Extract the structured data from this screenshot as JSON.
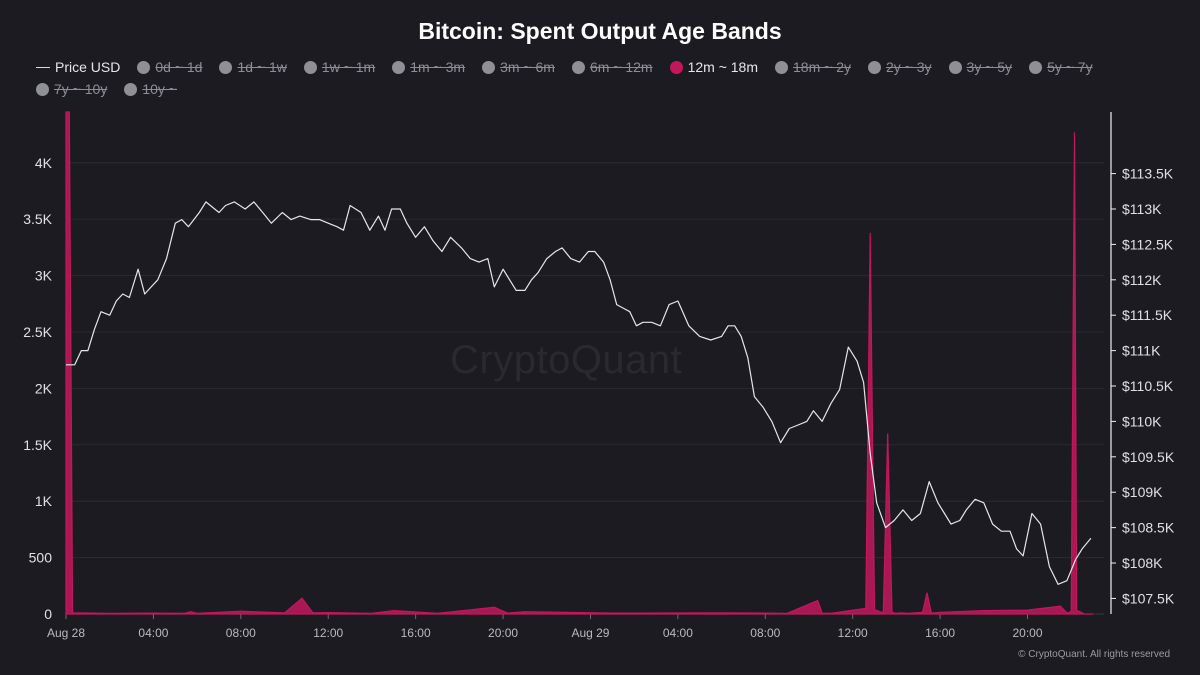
{
  "title": "Bitcoin: Spent Output Age Bands",
  "watermark": "CryptoQuant",
  "copyright": "© CryptoQuant. All rights reserved",
  "legend": [
    {
      "label": "Price USD",
      "marker": "line",
      "hidden": false
    },
    {
      "label": "0d ~ 1d",
      "marker": "dot",
      "hidden": true,
      "color": "#8f8f96"
    },
    {
      "label": "1d ~ 1w",
      "marker": "dot",
      "hidden": true,
      "color": "#8f8f96"
    },
    {
      "label": "1w ~ 1m",
      "marker": "dot",
      "hidden": true,
      "color": "#8f8f96"
    },
    {
      "label": "1m ~ 3m",
      "marker": "dot",
      "hidden": true,
      "color": "#8f8f96"
    },
    {
      "label": "3m ~ 6m",
      "marker": "dot",
      "hidden": true,
      "color": "#8f8f96"
    },
    {
      "label": "6m ~ 12m",
      "marker": "dot",
      "hidden": true,
      "color": "#8f8f96"
    },
    {
      "label": "12m ~ 18m",
      "marker": "dot",
      "hidden": false,
      "color": "#c2185b"
    },
    {
      "label": "18m ~ 2y",
      "marker": "dot",
      "hidden": true,
      "color": "#8f8f96"
    },
    {
      "label": "2y ~ 3y",
      "marker": "dot",
      "hidden": true,
      "color": "#8f8f96"
    },
    {
      "label": "3y ~ 5y",
      "marker": "dot",
      "hidden": true,
      "color": "#8f8f96"
    },
    {
      "label": "5y ~ 7y",
      "marker": "dot",
      "hidden": true,
      "color": "#8f8f96"
    },
    {
      "label": "7y ~ 10y",
      "marker": "dot",
      "hidden": true,
      "color": "#8f8f96"
    },
    {
      "label": "10y ~",
      "marker": "dot",
      "hidden": true,
      "color": "#8f8f96"
    }
  ],
  "chart_data": {
    "type": "area",
    "title": "Bitcoin: Spent Output Age Bands",
    "x_tick_labels": [
      "Aug 28",
      "04:00",
      "08:00",
      "12:00",
      "16:00",
      "20:00",
      "Aug 29",
      "04:00",
      "08:00",
      "12:00",
      "16:00",
      "20:00"
    ],
    "x_ticks_hours": [
      0,
      4,
      8,
      12,
      16,
      20,
      24,
      28,
      32,
      36,
      40,
      44
    ],
    "xlim_hours": [
      0,
      47.5
    ],
    "left_axis": {
      "ticks": [
        0,
        500,
        1000,
        1500,
        2000,
        2500,
        3000,
        3500,
        4000
      ],
      "tick_labels": [
        "0",
        "500",
        "1K",
        "1.5K",
        "2K",
        "2.5K",
        "3K",
        "3.5K",
        "4K"
      ],
      "ylim": [
        0,
        4450
      ]
    },
    "right_axis": {
      "ticks": [
        107500,
        108000,
        108500,
        109000,
        109500,
        110000,
        110500,
        111000,
        111500,
        112000,
        112500,
        113000,
        113500
      ],
      "tick_labels": [
        "$107.5K",
        "$108K",
        "$108.5K",
        "$109K",
        "$109.5K",
        "$110K",
        "$110.5K",
        "$111K",
        "$111.5K",
        "$112K",
        "$112.5K",
        "$113K",
        "$113.5K"
      ],
      "ylim": [
        107280,
        114370
      ]
    },
    "grid": true,
    "legend_position": "top",
    "series": [
      {
        "name": "12m ~ 18m",
        "axis": "left",
        "color": "#c2185b",
        "x": [
          0,
          0.15,
          0.3,
          2,
          4,
          5.4,
          5.7,
          6,
          8,
          10,
          10.8,
          11.3,
          12,
          14,
          15,
          17,
          19.6,
          20.2,
          21,
          25,
          30,
          33,
          34.4,
          34.6,
          35,
          36.6,
          36.8,
          37,
          37.4,
          37.6,
          37.8,
          38,
          38.2,
          38.5,
          39.2,
          39.4,
          39.6,
          40,
          42,
          44,
          45.5,
          45.8,
          46,
          46.15,
          46.25,
          46.4,
          46.6,
          47
        ],
        "y": [
          4450,
          4450,
          10,
          5,
          8,
          5,
          20,
          6,
          25,
          10,
          140,
          10,
          12,
          6,
          30,
          5,
          60,
          8,
          20,
          8,
          10,
          6,
          120,
          8,
          5,
          50,
          3380,
          40,
          10,
          1600,
          15,
          5,
          10,
          5,
          15,
          190,
          8,
          15,
          30,
          35,
          70,
          10,
          20,
          4270,
          30,
          20,
          0,
          0
        ]
      },
      {
        "name": "Price USD",
        "axis": "right",
        "color": "#e6e6ea",
        "x": [
          0,
          0.4,
          0.7,
          1.0,
          1.3,
          1.6,
          2.0,
          2.3,
          2.6,
          2.9,
          3.3,
          3.6,
          3.9,
          4.2,
          4.6,
          5.0,
          5.3,
          5.6,
          6.1,
          6.4,
          7.0,
          7.3,
          7.7,
          8.2,
          8.6,
          9.0,
          9.4,
          9.9,
          10.3,
          10.7,
          11.2,
          11.6,
          12.0,
          12.4,
          12.7,
          13.0,
          13.5,
          13.9,
          14.3,
          14.6,
          14.9,
          15.3,
          15.6,
          16.0,
          16.4,
          16.8,
          17.2,
          17.6,
          18.1,
          18.5,
          18.9,
          19.3,
          19.6,
          20.0,
          20.3,
          20.6,
          21.0,
          21.3,
          21.6,
          22.0,
          22.4,
          22.7,
          23.1,
          23.5,
          23.9,
          24.2,
          24.6,
          24.9,
          25.2,
          25.5,
          25.8,
          26.1,
          26.4,
          26.8,
          27.2,
          27.6,
          28.0,
          28.5,
          29.0,
          29.5,
          30.0,
          30.3,
          30.6,
          30.9,
          31.2,
          31.5,
          31.9,
          32.3,
          32.7,
          33.1,
          33.5,
          33.9,
          34.2,
          34.6,
          35.0,
          35.4,
          35.8,
          36.2,
          36.5,
          36.8,
          37.1,
          37.5,
          37.9,
          38.3,
          38.7,
          39.1,
          39.5,
          39.9,
          40.2,
          40.5,
          40.9,
          41.2,
          41.6,
          42.0,
          42.4,
          42.8,
          43.2,
          43.5,
          43.8,
          44.2,
          44.6,
          45.0,
          45.4,
          45.8,
          46.2,
          46.5
        ],
        "y": [
          110800,
          110800,
          111000,
          111000,
          111300,
          111550,
          111500,
          111700,
          111800,
          111750,
          112150,
          111800,
          111900,
          112000,
          112300,
          112800,
          112850,
          112750,
          112950,
          113100,
          112950,
          113050,
          113100,
          113000,
          113100,
          112950,
          112800,
          112950,
          112850,
          112900,
          112850,
          112850,
          112800,
          112750,
          112700,
          113050,
          112950,
          112700,
          112900,
          112700,
          113000,
          113000,
          112800,
          112600,
          112750,
          112550,
          112400,
          112600,
          112450,
          112300,
          112250,
          112300,
          111900,
          112150,
          112000,
          111850,
          111850,
          112000,
          112100,
          112300,
          112400,
          112450,
          112300,
          112250,
          112400,
          112400,
          112250,
          112000,
          111650,
          111600,
          111550,
          111350,
          111400,
          111400,
          111350,
          111650,
          111700,
          111350,
          111200,
          111150,
          111200,
          111350,
          111350,
          111200,
          110900,
          110350,
          110200,
          110000,
          109700,
          109900,
          109950,
          110000,
          110150,
          110000,
          110250,
          110450,
          111050,
          110850,
          110550,
          109550,
          108850,
          108500,
          108600,
          108750,
          108600,
          108700,
          109150,
          108850,
          108700,
          108550,
          108600,
          108750,
          108900,
          108850,
          108550,
          108450,
          108450,
          108200,
          108100,
          108700,
          108550,
          107950,
          107700,
          107750,
          108050,
          108200
        ],
        "x_end_note": "",
        "trail_x": [
          46.9
        ],
        "trail_y": [
          108350
        ]
      }
    ]
  }
}
